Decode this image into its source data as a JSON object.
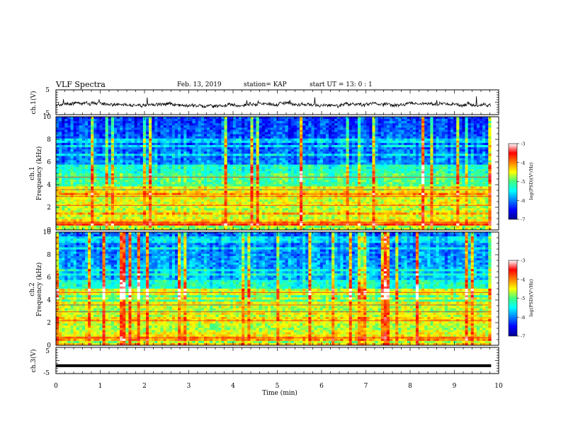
{
  "header": {
    "title": "VLF Spectra",
    "date": "Feb. 13, 2019",
    "station": "station= KAP",
    "start_ut": "start  UT =   13: 0  : 1"
  },
  "chart_data": [
    {
      "type": "line",
      "panel": "ch1-waveform",
      "ylabel": "ch.1(V)",
      "ylim": [
        -5,
        5
      ],
      "y_ticks": [
        "5",
        "-5"
      ],
      "xlim": [
        0,
        10
      ],
      "x_data_end": 9.83,
      "y_base": -1,
      "y_noise": 1.2,
      "color": "#000000"
    },
    {
      "type": "heatmap",
      "panel": "ch1-spectrogram",
      "ylabel_line1": "ch.1",
      "ylabel_line2": "Frequency (kHz)",
      "ylim": [
        0,
        10
      ],
      "y_ticks": [
        "0",
        "2",
        "4",
        "6",
        "8",
        "10"
      ],
      "xlim": [
        0,
        10
      ],
      "x_data_end": 9.83,
      "colorbar": {
        "label": "log(PSD)(V²/Hz)",
        "range": [
          -7,
          -3
        ],
        "ticks": [
          "-3",
          "-4",
          "-5",
          "-6",
          "-7"
        ]
      }
    },
    {
      "type": "heatmap",
      "panel": "ch2-spectrogram",
      "ylabel_line1": "ch.2",
      "ylabel_line2": "Frequency (kHz)",
      "ylim": [
        0,
        10
      ],
      "y_ticks": [
        "0",
        "2",
        "4",
        "6",
        "8",
        "10"
      ],
      "xlim": [
        0,
        10
      ],
      "x_data_end": 9.83,
      "colorbar": {
        "label": "log(PSD)(V²/Hz)",
        "range": [
          -7,
          -3
        ],
        "ticks": [
          "-3",
          "-4",
          "-5",
          "-6",
          "-7"
        ]
      }
    },
    {
      "type": "line",
      "panel": "ch3-waveform",
      "ylabel": "ch.3(V)",
      "ylim": [
        -5,
        5
      ],
      "y_ticks": [
        "5",
        "-5"
      ],
      "xlim": [
        0,
        10
      ],
      "x_data_end": 9.83,
      "y_base": -2,
      "y_noise": 0,
      "color": "#000000"
    }
  ],
  "x_axis": {
    "label": "Time  (min)",
    "ticks": [
      "0",
      "1",
      "2",
      "3",
      "4",
      "5",
      "6",
      "7",
      "8",
      "9",
      "10"
    ]
  }
}
